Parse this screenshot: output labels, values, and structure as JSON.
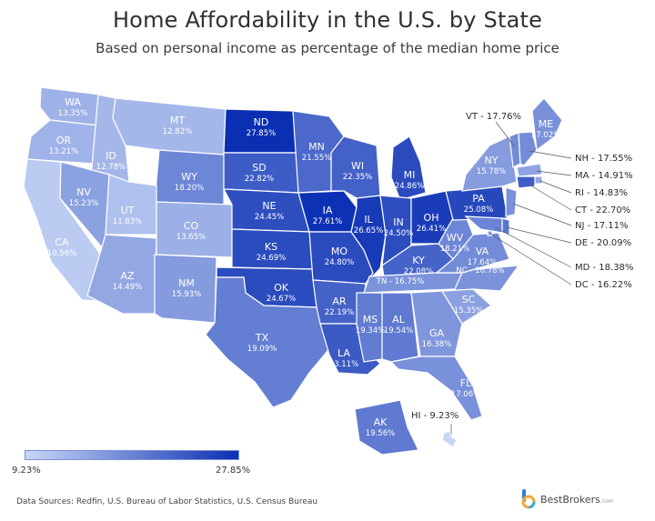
{
  "header": {
    "title": "Home Affordability in the U.S. by State",
    "subtitle": "Based on personal income as percentage of the median home price"
  },
  "scale": {
    "min": 9.23,
    "max": 27.85,
    "min_label": "9.23%",
    "max_label": "27.85%",
    "color_low": "#c9d7f6",
    "color_high": "#0b2fb3"
  },
  "states": [
    {
      "abbr": "WA",
      "value": 13.35,
      "label": "13.35%"
    },
    {
      "abbr": "OR",
      "value": 13.21,
      "label": "13.21%"
    },
    {
      "abbr": "CA",
      "value": 10.56,
      "label": "10.56%"
    },
    {
      "abbr": "ID",
      "value": 12.78,
      "label": "12.78%"
    },
    {
      "abbr": "NV",
      "value": 15.23,
      "label": "15.23%"
    },
    {
      "abbr": "MT",
      "value": 12.82,
      "label": "12.82%"
    },
    {
      "abbr": "WY",
      "value": 18.2,
      "label": "18.20%"
    },
    {
      "abbr": "UT",
      "value": 11.83,
      "label": "11.83%"
    },
    {
      "abbr": "CO",
      "value": 13.65,
      "label": "13.65%"
    },
    {
      "abbr": "AZ",
      "value": 14.49,
      "label": "14.49%"
    },
    {
      "abbr": "NM",
      "value": 15.93,
      "label": "15.93%"
    },
    {
      "abbr": "ND",
      "value": 27.85,
      "label": "27.85%"
    },
    {
      "abbr": "SD",
      "value": 22.82,
      "label": "22.82%"
    },
    {
      "abbr": "NE",
      "value": 24.45,
      "label": "24.45%"
    },
    {
      "abbr": "KS",
      "value": 24.69,
      "label": "24.69%"
    },
    {
      "abbr": "OK",
      "value": 24.67,
      "label": "24.67%"
    },
    {
      "abbr": "TX",
      "value": 19.09,
      "label": "19.09%"
    },
    {
      "abbr": "MN",
      "value": 21.55,
      "label": "21.55%"
    },
    {
      "abbr": "IA",
      "value": 27.61,
      "label": "27.61%"
    },
    {
      "abbr": "MO",
      "value": 24.8,
      "label": "24.80%"
    },
    {
      "abbr": "AR",
      "value": 22.19,
      "label": "22.19%"
    },
    {
      "abbr": "LA",
      "value": 23.11,
      "label": "23.11%"
    },
    {
      "abbr": "WI",
      "value": 22.35,
      "label": "22.35%"
    },
    {
      "abbr": "IL",
      "value": 26.65,
      "label": "26.65%"
    },
    {
      "abbr": "MI",
      "value": 24.86,
      "label": "24.86%"
    },
    {
      "abbr": "IN",
      "value": 24.5,
      "label": "24.50%"
    },
    {
      "abbr": "OH",
      "value": 26.41,
      "label": "26.41%"
    },
    {
      "abbr": "KY",
      "value": 22.08,
      "label": "22.08%"
    },
    {
      "abbr": "TN",
      "value": 16.75,
      "label": "TN - 16.75%"
    },
    {
      "abbr": "MS",
      "value": 19.34,
      "label": "19.34%"
    },
    {
      "abbr": "AL",
      "value": 19.54,
      "label": "19.54%"
    },
    {
      "abbr": "GA",
      "value": 16.38,
      "label": "16.38%"
    },
    {
      "abbr": "FL",
      "value": 17.06,
      "label": "17.06%"
    },
    {
      "abbr": "SC",
      "value": 15.35,
      "label": "15.35%"
    },
    {
      "abbr": "NC",
      "value": 16.78,
      "label": "NC - 16.78%"
    },
    {
      "abbr": "VA",
      "value": 17.64,
      "label": "17.64%"
    },
    {
      "abbr": "WV",
      "value": 18.21,
      "label": "18.21%"
    },
    {
      "abbr": "PA",
      "value": 25.08,
      "label": "25.08%"
    },
    {
      "abbr": "NY",
      "value": 15.78,
      "label": "15.78%"
    },
    {
      "abbr": "ME",
      "value": 17.02,
      "label": "17.02%"
    },
    {
      "abbr": "AK",
      "value": 19.56,
      "label": "19.56%"
    },
    {
      "abbr": "VT",
      "value": 17.76,
      "label": "VT - 17.76%"
    },
    {
      "abbr": "NH",
      "value": 17.55,
      "label": "NH - 17.55%"
    },
    {
      "abbr": "MA",
      "value": 14.91,
      "label": "MA - 14.91%"
    },
    {
      "abbr": "RI",
      "value": 14.83,
      "label": "RI - 14.83%"
    },
    {
      "abbr": "CT",
      "value": 22.7,
      "label": "CT - 22.70%"
    },
    {
      "abbr": "NJ",
      "value": 17.11,
      "label": "NJ - 17.11%"
    },
    {
      "abbr": "DE",
      "value": 20.09,
      "label": "DE - 20.09%"
    },
    {
      "abbr": "MD",
      "value": 18.38,
      "label": "MD - 18.38%"
    },
    {
      "abbr": "DC",
      "value": 16.22,
      "label": "DC - 16.22%"
    },
    {
      "abbr": "HI",
      "value": 9.23,
      "label": "HI - 9.23%"
    }
  ],
  "footer": {
    "source": "Data Sources: Redfin, U.S. Bureau of Labor Statistics, U.S. Census Bureau",
    "brand": "BestBrokers",
    "brand_suffix": ".com"
  }
}
